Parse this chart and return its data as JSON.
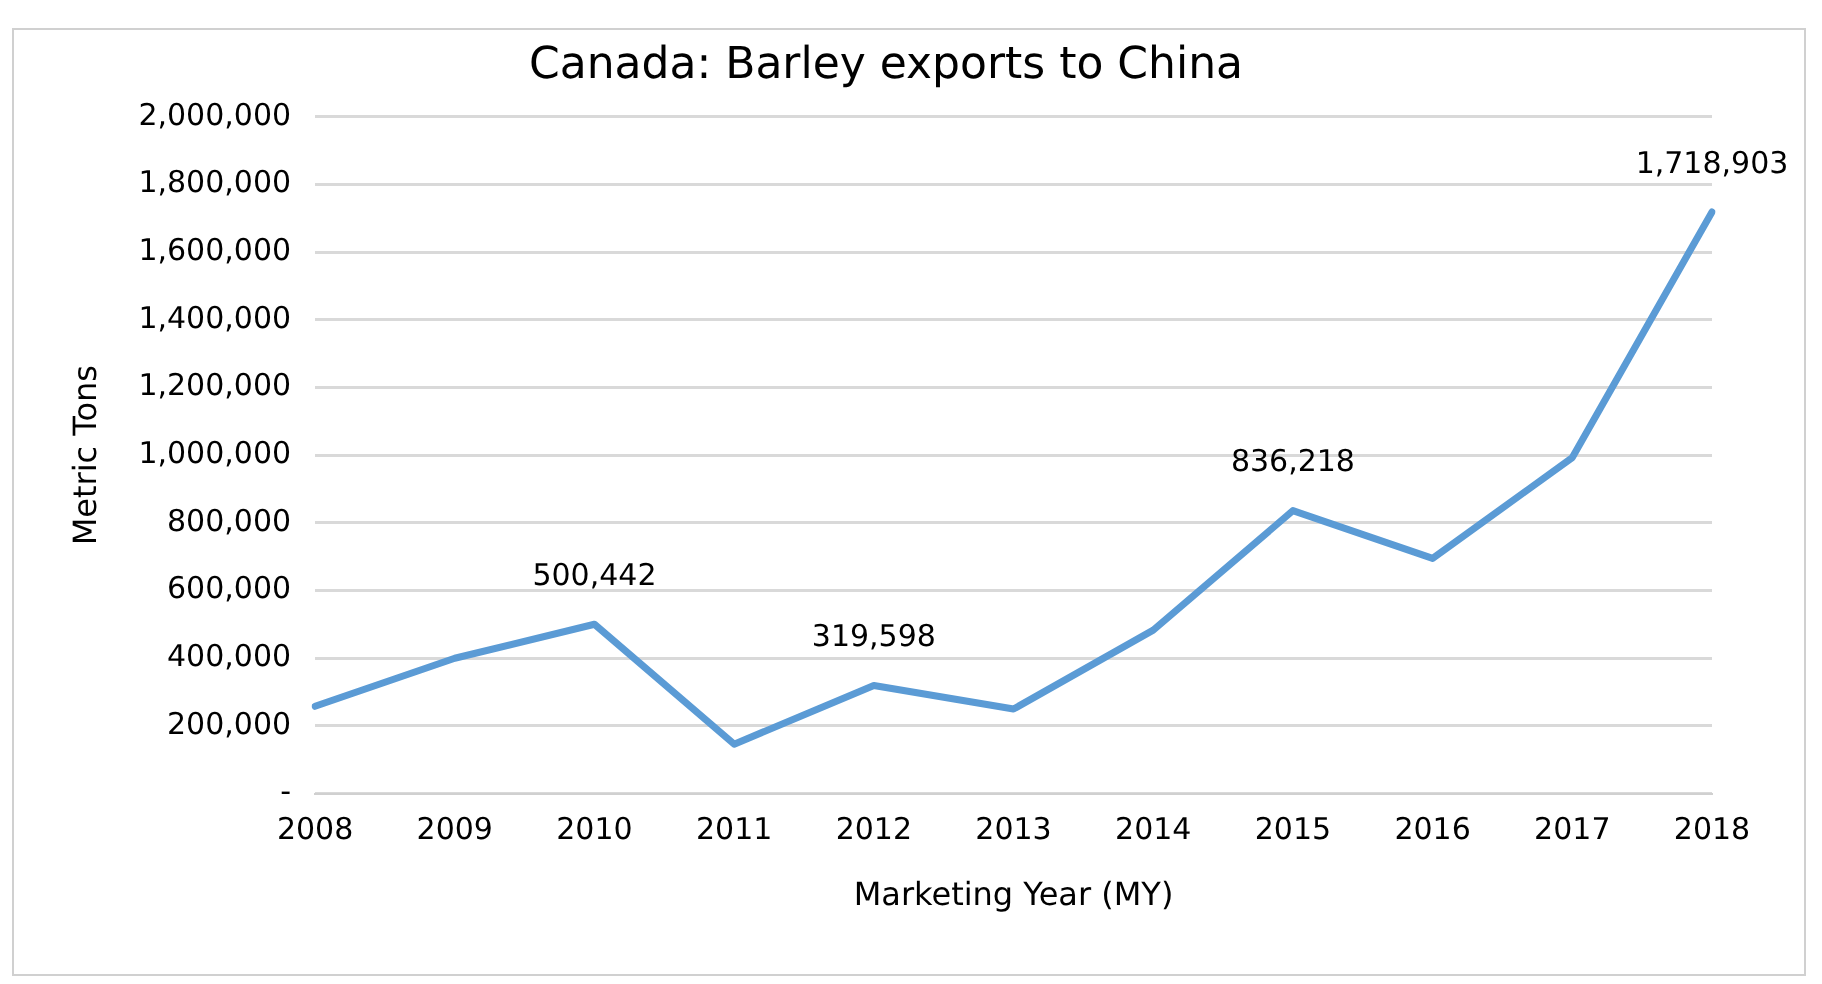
{
  "chart_data": {
    "type": "line",
    "title": "Canada: Barley exports to China",
    "xlabel": "Marketing Year (MY)",
    "ylabel": "Metric Tons",
    "categories": [
      "2008",
      "2009",
      "2010",
      "2011",
      "2012",
      "2013",
      "2014",
      "2015",
      "2016",
      "2017",
      "2018"
    ],
    "series": [
      {
        "color": "#5b9bd5",
        "values": [
          258000,
          400000,
          500442,
          146000,
          319598,
          250000,
          483000,
          836218,
          695000,
          993000,
          1718903
        ],
        "value_labels": [
          null,
          null,
          "500,442",
          null,
          "319,598",
          null,
          null,
          "836,218",
          null,
          null,
          "1,718,903"
        ]
      }
    ],
    "ylim": [
      0,
      2000000
    ],
    "yticks": [
      {
        "value": 0,
        "label": "-"
      },
      {
        "value": 200000,
        "label": "200,000"
      },
      {
        "value": 400000,
        "label": "400,000"
      },
      {
        "value": 600000,
        "label": "600,000"
      },
      {
        "value": 800000,
        "label": "800,000"
      },
      {
        "value": 1000000,
        "label": "1,000,000"
      },
      {
        "value": 1200000,
        "label": "1,200,000"
      },
      {
        "value": 1400000,
        "label": "1,400,000"
      },
      {
        "value": 1600000,
        "label": "1,600,000"
      },
      {
        "value": 1800000,
        "label": "1,800,000"
      },
      {
        "value": 2000000,
        "label": "2,000,000"
      }
    ],
    "grid": "y",
    "marker": "none",
    "line_style": "solid",
    "legend": false
  }
}
